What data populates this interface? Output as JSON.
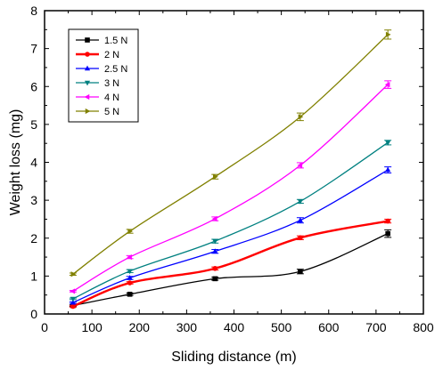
{
  "chart_data": {
    "type": "line",
    "xlabel": "Sliding distance (m)",
    "ylabel": "Weight loss (mg)",
    "xlim": [
      0,
      800
    ],
    "ylim": [
      0,
      8
    ],
    "xticks": [
      "0",
      "100",
      "200",
      "300",
      "400",
      "500",
      "600",
      "700",
      "800"
    ],
    "yticks": [
      "0",
      "1",
      "2",
      "3",
      "4",
      "5",
      "6",
      "7",
      "8"
    ],
    "grid": false,
    "legend_position": "top-left",
    "x": [
      60,
      180,
      360,
      540,
      725
    ],
    "series": [
      {
        "name": "1.5 N",
        "color": "#000000",
        "marker": "square",
        "values": [
          0.22,
          0.52,
          0.93,
          1.12,
          2.12
        ],
        "errors": [
          0.02,
          0.03,
          0.04,
          0.06,
          0.1
        ]
      },
      {
        "name": "2 N",
        "color": "#ff0000",
        "marker": "circle",
        "values": [
          0.2,
          0.82,
          1.2,
          2.01,
          2.45
        ],
        "errors": [
          0.02,
          0.03,
          0.04,
          0.05,
          0.05
        ]
      },
      {
        "name": "2.5 N",
        "color": "#0000ff",
        "marker": "triangle-up",
        "values": [
          0.3,
          0.95,
          1.65,
          2.47,
          3.8
        ],
        "errors": [
          0.02,
          0.04,
          0.05,
          0.07,
          0.08
        ]
      },
      {
        "name": "3 N",
        "color": "#008080",
        "marker": "triangle-down",
        "values": [
          0.4,
          1.13,
          1.92,
          2.97,
          4.52
        ],
        "errors": [
          0.02,
          0.04,
          0.05,
          0.05,
          0.06
        ]
      },
      {
        "name": "4 N",
        "color": "#ff00ff",
        "marker": "triangle-left",
        "values": [
          0.6,
          1.5,
          2.51,
          3.92,
          6.05
        ],
        "errors": [
          0.02,
          0.04,
          0.05,
          0.07,
          0.1
        ]
      },
      {
        "name": "5 N",
        "color": "#808000",
        "marker": "triangle-right",
        "values": [
          1.05,
          2.18,
          3.62,
          5.2,
          7.37
        ],
        "errors": [
          0.03,
          0.05,
          0.06,
          0.1,
          0.12
        ]
      }
    ]
  }
}
